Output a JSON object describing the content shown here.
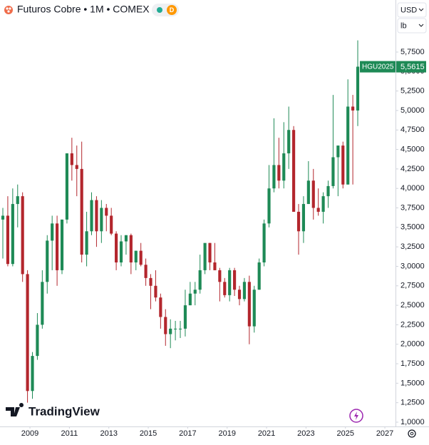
{
  "chart_data": {
    "type": "candlestick",
    "title": "Futuros Cobre • 1M • COMEX",
    "badge": "D",
    "currency": "USD",
    "unit": "lb",
    "brand": "TradingView",
    "up_color": "#1e8a56",
    "down_color": "#b3262d",
    "grid": false,
    "xlim": [
      2007.48,
      2027.54
    ],
    "xticks": [
      2009,
      2011,
      2013,
      2015,
      2017,
      2019,
      2021,
      2023,
      2025,
      2027
    ],
    "ylim": [
      0.945,
      6.418
    ],
    "yticks": [
      {
        "value": 1,
        "label": "1,0000"
      },
      {
        "value": 1.25,
        "label": "1,2500"
      },
      {
        "value": 1.5,
        "label": "1,5000"
      },
      {
        "value": 1.75,
        "label": "1,7500"
      },
      {
        "value": 2,
        "label": "2,0000"
      },
      {
        "value": 2.25,
        "label": "2,2500"
      },
      {
        "value": 2.5,
        "label": "2,5000"
      },
      {
        "value": 2.75,
        "label": "2,7500"
      },
      {
        "value": 3,
        "label": "3,0000"
      },
      {
        "value": 3.25,
        "label": "3,2500"
      },
      {
        "value": 3.5,
        "label": "3,5000"
      },
      {
        "value": 3.75,
        "label": "3,7500"
      },
      {
        "value": 4,
        "label": "4,0000"
      },
      {
        "value": 4.25,
        "label": "4,2500"
      },
      {
        "value": 4.5,
        "label": "4,5000"
      },
      {
        "value": 4.75,
        "label": "4,7500"
      },
      {
        "value": 5,
        "label": "5,0000"
      },
      {
        "value": 5.25,
        "label": "5,2500"
      },
      {
        "value": 5.5,
        "label": "5,5000"
      },
      {
        "value": 5.75,
        "label": "5,7500"
      }
    ],
    "last_price": {
      "symbol": "HGU2025",
      "value": 5.5615,
      "label": "5,5615"
    },
    "x": [
      2007.625,
      2007.875,
      2008.125,
      2008.375,
      2008.625,
      2008.875,
      2009.125,
      2009.375,
      2009.625,
      2009.875,
      2010.125,
      2010.375,
      2010.625,
      2010.875,
      2011.125,
      2011.375,
      2011.625,
      2011.875,
      2012.125,
      2012.375,
      2012.625,
      2012.875,
      2013.125,
      2013.375,
      2013.625,
      2013.875,
      2014.125,
      2014.375,
      2014.625,
      2014.875,
      2015.125,
      2015.375,
      2015.625,
      2015.875,
      2016.125,
      2016.375,
      2016.625,
      2016.875,
      2017.125,
      2017.375,
      2017.625,
      2017.875,
      2018.125,
      2018.375,
      2018.625,
      2018.875,
      2019.125,
      2019.375,
      2019.625,
      2019.875,
      2020.125,
      2020.375,
      2020.625,
      2020.875,
      2021.125,
      2021.375,
      2021.625,
      2021.875,
      2022.125,
      2022.375,
      2022.625,
      2022.875,
      2023.125,
      2023.375,
      2023.625,
      2023.875,
      2024.125,
      2024.375,
      2024.625,
      2024.875,
      2025.125,
      2025.375,
      2025.625
    ],
    "open": [
      3.6,
      3.65,
      3.03,
      3.8,
      3.9,
      2.9,
      1.4,
      1.85,
      2.25,
      2.8,
      3.33,
      3.55,
      2.95,
      3.6,
      4.45,
      4.3,
      4.25,
      3.15,
      3.45,
      3.85,
      3.45,
      3.75,
      3.65,
      3.42,
      3.05,
      3.32,
      3.4,
      3.05,
      3.2,
      3.02,
      2.85,
      2.75,
      2.6,
      2.35,
      2.13,
      2.2,
      2.2,
      2.2,
      2.5,
      2.65,
      2.7,
      2.95,
      3.3,
      3.05,
      2.95,
      2.8,
      2.63,
      2.95,
      2.7,
      2.58,
      2.8,
      2.23,
      2.7,
      3.05,
      3.55,
      4.0,
      4.3,
      4.1,
      4.45,
      4.75,
      3.7,
      3.45,
      3.8,
      4.1,
      3.75,
      3.7,
      3.9,
      4.03,
      4.4,
      4.55,
      4.05,
      5.05,
      5.0
    ],
    "high": [
      3.75,
      3.9,
      4.0,
      4.05,
      3.95,
      2.95,
      1.9,
      2.4,
      2.95,
      3.4,
      3.65,
      3.65,
      3.6,
      4.45,
      4.65,
      4.55,
      4.6,
      3.7,
      3.95,
      3.9,
      3.85,
      3.8,
      3.75,
      3.45,
      3.4,
      3.4,
      3.42,
      3.2,
      3.3,
      3.1,
      2.9,
      2.95,
      2.65,
      2.45,
      2.32,
      2.3,
      2.3,
      2.7,
      2.8,
      2.8,
      3.15,
      3.25,
      3.3,
      3.3,
      2.98,
      2.85,
      2.98,
      2.98,
      2.75,
      2.85,
      2.88,
      2.75,
      3.1,
      3.6,
      4.3,
      4.9,
      4.65,
      4.85,
      5.05,
      4.8,
      3.8,
      3.9,
      4.35,
      4.25,
      4.0,
      3.95,
      4.1,
      5.2,
      4.55,
      4.6,
      5.4,
      5.2,
      5.9
    ],
    "low": [
      3.1,
      3.0,
      3.0,
      3.5,
      2.8,
      1.25,
      1.3,
      1.8,
      2.2,
      2.65,
      2.95,
      2.75,
      2.9,
      3.55,
      4.1,
      3.9,
      3.05,
      3.0,
      3.4,
      3.25,
      3.3,
      3.45,
      3.4,
      2.95,
      3.0,
      3.15,
      2.9,
      2.95,
      3.0,
      2.75,
      2.45,
      2.55,
      2.2,
      1.98,
      1.95,
      2.05,
      2.08,
      2.1,
      2.5,
      2.5,
      2.65,
      2.9,
      2.95,
      2.95,
      2.55,
      2.6,
      2.55,
      2.62,
      2.5,
      2.55,
      2.0,
      2.15,
      2.7,
      3.0,
      3.5,
      3.95,
      4.0,
      4.0,
      4.25,
      3.7,
      3.15,
      3.3,
      3.8,
      3.6,
      3.65,
      3.55,
      3.75,
      4.0,
      3.9,
      4.0,
      4.05,
      4.05,
      4.8
    ],
    "close": [
      3.65,
      3.03,
      3.8,
      3.9,
      2.9,
      1.4,
      1.85,
      2.25,
      2.8,
      3.33,
      3.55,
      2.95,
      3.6,
      4.45,
      4.3,
      4.25,
      3.15,
      3.45,
      3.85,
      3.45,
      3.75,
      3.65,
      3.42,
      3.05,
      3.32,
      3.4,
      3.05,
      3.2,
      3.02,
      2.85,
      2.75,
      2.6,
      2.35,
      2.13,
      2.2,
      2.2,
      2.2,
      2.5,
      2.65,
      2.7,
      2.95,
      3.3,
      3.05,
      2.95,
      2.8,
      2.63,
      2.95,
      2.7,
      2.58,
      2.8,
      2.23,
      2.7,
      3.05,
      3.55,
      4.0,
      4.3,
      4.1,
      4.45,
      4.75,
      3.7,
      3.45,
      3.8,
      4.1,
      3.75,
      3.7,
      3.9,
      4.03,
      4.4,
      4.55,
      4.05,
      5.05,
      5.0,
      5.5615
    ]
  }
}
